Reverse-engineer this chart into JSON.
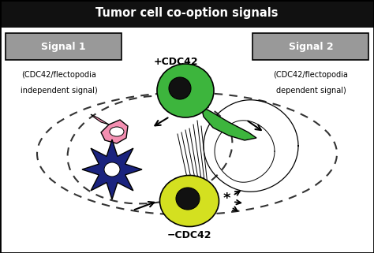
{
  "title": "Tumor cell co-option signals",
  "title_bg": "#111111",
  "title_color": "#ffffff",
  "signal1_label": "Signal 1",
  "signal1_text1": "(CDC42/flectopodia",
  "signal1_text2": "independent signal)",
  "signal2_label": "Signal 2",
  "signal2_text1": "(CDC42/flectopodia",
  "signal2_text2": "dependent signal)",
  "plus_cdc42": "+CDC42",
  "minus_cdc42": "−CDC42",
  "bg_color": "#ffffff",
  "signal_box_color": "#999999",
  "fig_bg": "#c8c8c8",
  "green_cell_color": "#3db53d",
  "yellow_cell_color": "#d4e020",
  "pink_cell_color": "#f48fb1",
  "blue_cell_color": "#1a237e",
  "nucleus_color": "#111111"
}
